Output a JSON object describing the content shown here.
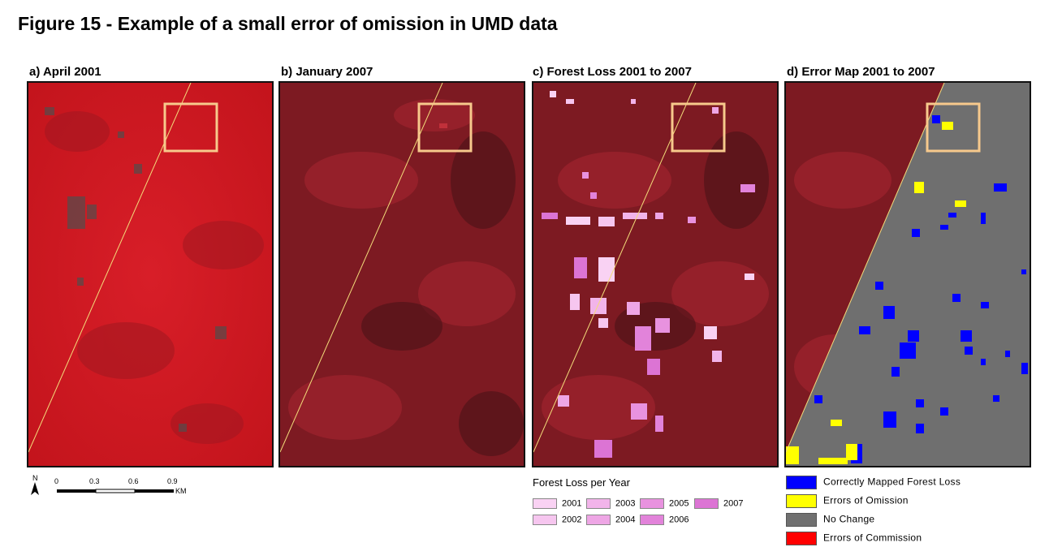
{
  "figure_title": "Figure 15 - Example of a small error of omission in UMD data",
  "panels": [
    {
      "label": "a) April 2001"
    },
    {
      "label": "b) January 2007"
    },
    {
      "label": "c) Forest Loss 2001 to 2007"
    },
    {
      "label": "d) Error Map 2001 to 2007"
    }
  ],
  "scale_bar": {
    "north": "N",
    "ticks": [
      "0",
      "0.3",
      "0.6",
      "0.9"
    ],
    "unit": "KM"
  },
  "forest_loss_legend": {
    "title": "Forest Loss per Year",
    "items": [
      {
        "label": "2001",
        "color": "#f9d2f3"
      },
      {
        "label": "2002",
        "color": "#f6c6ef"
      },
      {
        "label": "2003",
        "color": "#f2b4ea"
      },
      {
        "label": "2004",
        "color": "#eea6e5"
      },
      {
        "label": "2005",
        "color": "#e892df"
      },
      {
        "label": "2006",
        "color": "#e283da"
      },
      {
        "label": "2007",
        "color": "#dc74d4"
      }
    ]
  },
  "error_legend": {
    "items": [
      {
        "label": "Correctly Mapped Forest Loss",
        "color": "#0000ff"
      },
      {
        "label": "Errors of Omission",
        "color": "#ffff00"
      },
      {
        "label": "No Change",
        "color": "#707070"
      },
      {
        "label": "Errors of Commission",
        "color": "#ff0000"
      }
    ]
  },
  "colors": {
    "highlight_box": "#f7c98c",
    "road_line": "#f3dc7a",
    "april_2001_base": "#cc1a22",
    "january_2007_base": "#7d1a22"
  }
}
